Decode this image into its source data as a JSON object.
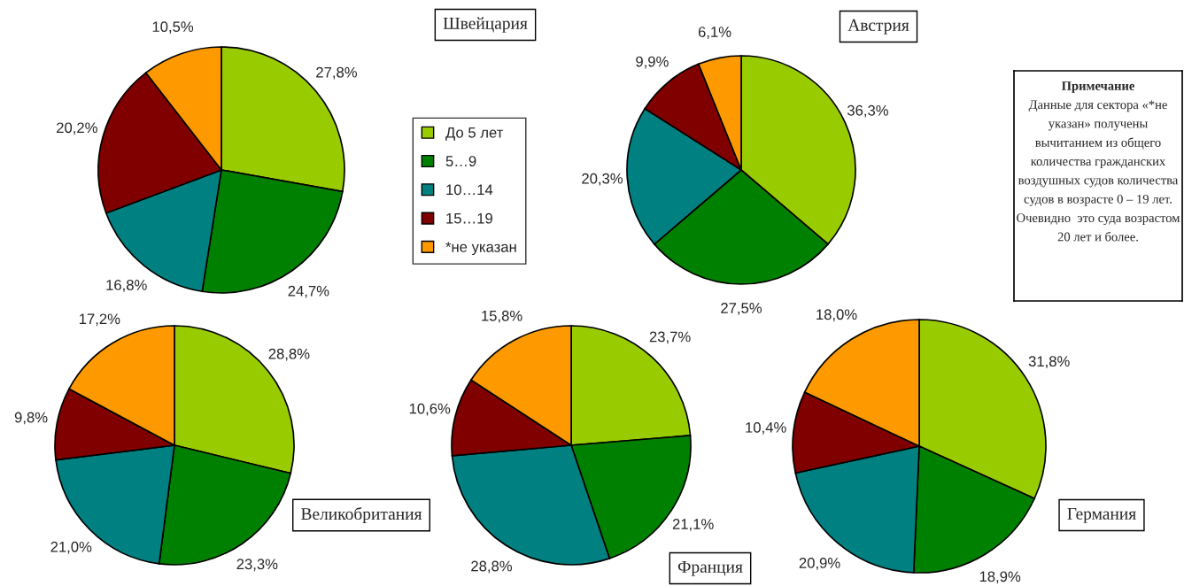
{
  "chart_data": [
    {
      "type": "pie",
      "title": "Швейцария",
      "categories": [
        "До 5 лет",
        "5…9",
        "10…14",
        "15…19",
        "*не указан"
      ],
      "values": [
        27.8,
        24.7,
        16.8,
        20.2,
        10.5
      ],
      "value_labels": [
        "27,8%",
        "24,7%",
        "16,8%",
        "20,2%",
        "10,5%"
      ],
      "colors": [
        "#99cc00",
        "#008000",
        "#008080",
        "#800000",
        "#ff9900"
      ],
      "legend": "right"
    },
    {
      "type": "pie",
      "title": "Австрия",
      "values": [
        36.3,
        27.5,
        20.3,
        9.9,
        6.1
      ],
      "value_labels": [
        "36,3%",
        "27,5%",
        "20,3%",
        "9,9%",
        "6,1%"
      ],
      "colors": [
        "#99cc00",
        "#008000",
        "#008080",
        "#800000",
        "#ff9900"
      ]
    },
    {
      "type": "other",
      "annotations": [
        "Примечание",
        "Данные для сектора «*не",
        "указан» получены",
        "вычитанием из общего",
        "количества гражданских",
        "воздушных судов количества",
        "судов в возрасте 0 – 19 лет.",
        "Очевидно  это суда возрастом",
        "20 лет и более."
      ]
    },
    {
      "type": "pie",
      "title": "Великобритания",
      "values": [
        28.8,
        23.3,
        21.0,
        9.8,
        17.2
      ],
      "value_labels": [
        "28,8%",
        "23,3%",
        "21,0%",
        "9,8%",
        "17,2%"
      ],
      "colors": [
        "#99cc00",
        "#008000",
        "#008080",
        "#800000",
        "#ff9900"
      ]
    },
    {
      "type": "pie",
      "title": "Франция",
      "values": [
        23.7,
        21.1,
        28.8,
        10.6,
        15.8
      ],
      "value_labels": [
        "23,7%",
        "21,1%",
        "28,8%",
        "10,6%",
        "15,8%"
      ],
      "colors": [
        "#99cc00",
        "#008000",
        "#008080",
        "#800000",
        "#ff9900"
      ]
    },
    {
      "type": "pie",
      "title": "Германия",
      "values": [
        31.8,
        18.9,
        20.9,
        10.4,
        18.0
      ],
      "value_labels": [
        "31,8%",
        "18,9%",
        "20,9%",
        "10,4%",
        "18,0%"
      ],
      "colors": [
        "#99cc00",
        "#008000",
        "#008080",
        "#800000",
        "#ff9900"
      ]
    }
  ]
}
